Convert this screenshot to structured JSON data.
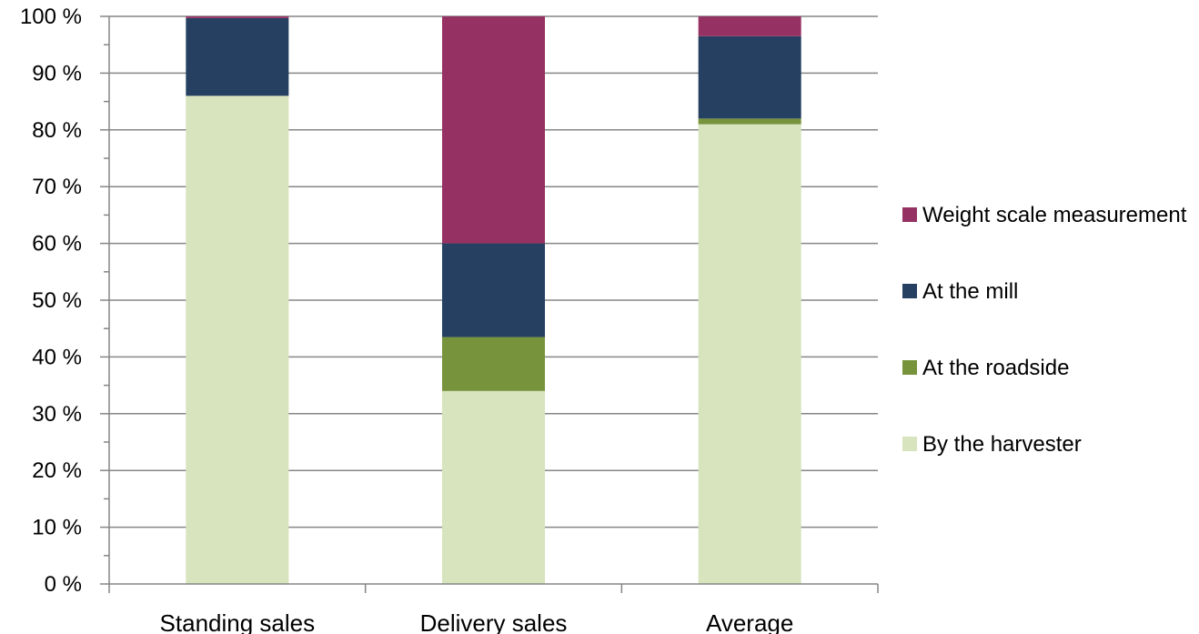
{
  "chart_data": {
    "type": "bar",
    "stacked": true,
    "percent_stacked": true,
    "categories": [
      "Standing sales",
      "Delivery sales",
      "Average"
    ],
    "series": [
      {
        "name": "By the harvester",
        "color": "#d7e4bd",
        "values": [
          86,
          34,
          81
        ]
      },
      {
        "name": "At the roadside",
        "color": "#77933c",
        "values": [
          0,
          9.5,
          1
        ]
      },
      {
        "name": "At the mill",
        "color": "#254061",
        "values": [
          13.7,
          16.5,
          14.5
        ]
      },
      {
        "name": "Weight scale measurement",
        "color": "#953163",
        "values": [
          0.3,
          40,
          3.5
        ]
      }
    ],
    "ylim": [
      0,
      100
    ],
    "y_ticks": [
      0,
      10,
      20,
      30,
      40,
      50,
      60,
      70,
      80,
      90,
      100
    ],
    "y_tick_labels": [
      "0 %",
      "10 %",
      "20 %",
      "30 %",
      "40 %",
      "50 %",
      "60 %",
      "70 %",
      "80 %",
      "90 %",
      "100 %"
    ],
    "legend_order": [
      "Weight scale measurement",
      "At the mill",
      "At the roadside",
      "By the harvester"
    ],
    "legend_position": "right",
    "grid": true,
    "gridline_color": "#868686",
    "title": "",
    "xlabel": "",
    "ylabel": ""
  }
}
